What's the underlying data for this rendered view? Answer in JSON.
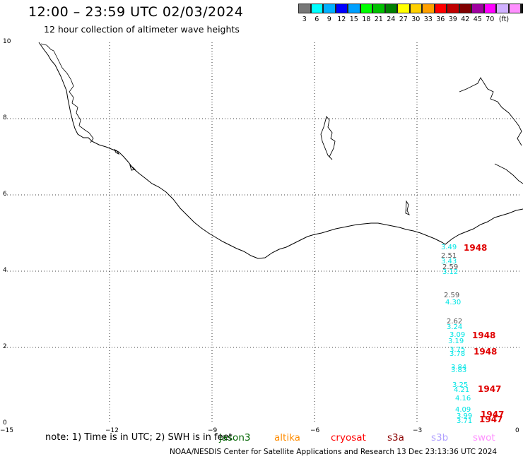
{
  "header": {
    "title": "12:00 – 23:59 UTC 02/03/2024",
    "subtitle": "12 hour collection of altimeter wave heights"
  },
  "scale": {
    "colors": [
      "#777777",
      "#00ffff",
      "#00b0ff",
      "#0000ff",
      "#00a0ff",
      "#00ff00",
      "#00c000",
      "#008000",
      "#ffff00",
      "#ffd000",
      "#ffa000",
      "#ff0000",
      "#c00000",
      "#800000",
      "#a000a0",
      "#ff00ff",
      "#d0b0ff",
      "#ff90ff",
      "#000000"
    ],
    "labels": [
      "3",
      "6",
      "9",
      "12",
      "15",
      "18",
      "21",
      "24",
      "27",
      "30",
      "33",
      "36",
      "39",
      "42",
      "45",
      "70",
      "(ft)"
    ]
  },
  "axes": {
    "x_ticks": [
      "−15",
      "−12",
      "−9",
      "−6",
      "−3",
      "0"
    ],
    "y_ticks": [
      "10",
      "8",
      "6",
      "4",
      "2",
      "0"
    ]
  },
  "observations": [
    {
      "value": "3.49",
      "color": "#00e5e5"
    },
    {
      "value": "2.51",
      "color": "#555555"
    },
    {
      "value": "3.43",
      "color": "#00e5e5"
    },
    {
      "value": "2.59",
      "color": "#555555"
    },
    {
      "value": "3.12",
      "color": "#00e5e5"
    },
    {
      "value": "2.59",
      "color": "#555555"
    },
    {
      "value": "4.30",
      "color": "#00e5e5"
    },
    {
      "value": "2.62",
      "color": "#555555"
    },
    {
      "value": "3.24",
      "color": "#00e5e5"
    },
    {
      "value": "3.09",
      "color": "#00e5e5"
    },
    {
      "value": "3.19",
      "color": "#00e5e5"
    },
    {
      "value": "3.75",
      "color": "#00e5e5"
    },
    {
      "value": "3.78",
      "color": "#00e5e5"
    },
    {
      "value": "3.84",
      "color": "#00e5e5"
    },
    {
      "value": "3.83",
      "color": "#00e5e5"
    },
    {
      "value": "3.25",
      "color": "#00e5e5"
    },
    {
      "value": "4.21",
      "color": "#00e5e5"
    },
    {
      "value": "4.16",
      "color": "#00e5e5"
    },
    {
      "value": "4.09",
      "color": "#00e5e5"
    },
    {
      "value": "3.99",
      "color": "#00e5e5"
    },
    {
      "value": "3.71",
      "color": "#00e5e5"
    }
  ],
  "time_labels": [
    "1948",
    "1948",
    "1948",
    "1947",
    "1947",
    "1947"
  ],
  "footer": {
    "note": "note:  1) Time is in UTC; 2) SWH is in feet",
    "satellites": [
      {
        "name": "jason3",
        "color": "#006400"
      },
      {
        "name": "altika",
        "color": "#ff8c00"
      },
      {
        "name": "cryosat",
        "color": "#ff0000"
      },
      {
        "name": "s3a",
        "color": "#8b0000"
      },
      {
        "name": "s3b",
        "color": "#b0a0ff"
      },
      {
        "name": "swot",
        "color": "#ff90ff"
      }
    ],
    "credit": "NOAA/NESDIS Center for Satellite Applications and Research    13 Dec 23:13:36 UTC 2024"
  }
}
